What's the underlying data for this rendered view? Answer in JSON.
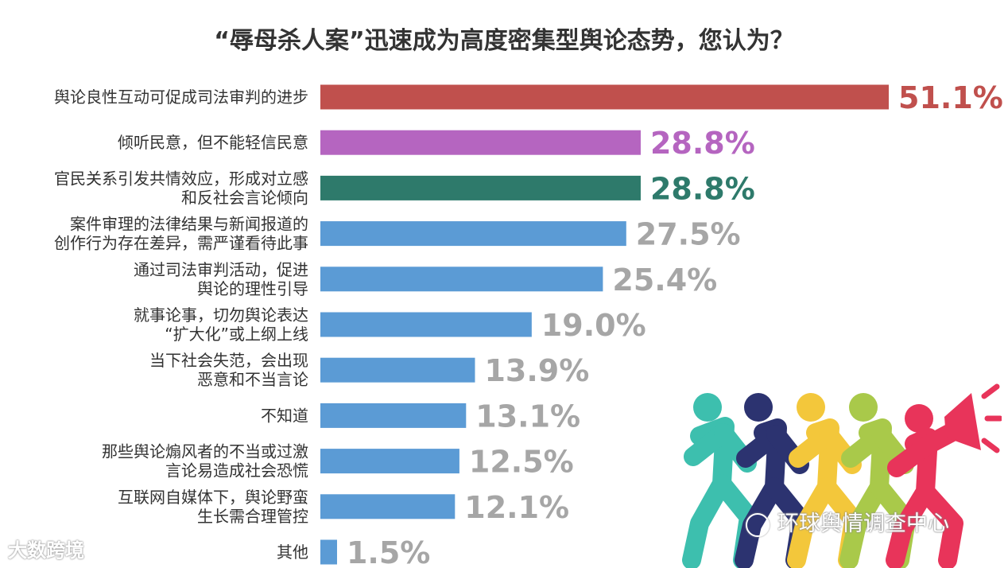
{
  "title": "“辱母杀人案”迅速成为高度密集型舆论态势，您认为？",
  "chart_data": {
    "type": "bar",
    "orientation": "horizontal",
    "title": "“辱母杀人案”迅速成为高度密集型舆论态势，您认为？",
    "unit": "%",
    "xlim": [
      0,
      51.1
    ],
    "grid": false,
    "categories": [
      [
        "舆论良性互动可促成司法审判的进步"
      ],
      [
        "倾听民意，但不能轻信民意"
      ],
      [
        "官民关系引发共情效应，形成对立感",
        "和反社会言论倾向"
      ],
      [
        "案件审理的法律结果与新闻报道的",
        "创作行为存在差异，需严谨看待此事"
      ],
      [
        "通过司法审判活动，促进",
        "舆论的理性引导"
      ],
      [
        "就事论事，切勿舆论表达",
        "“扩大化”或上纲上线"
      ],
      [
        "当下社会失范，会出现",
        "恶意和不当言论"
      ],
      [
        "不知道"
      ],
      [
        "那些舆论煽风者的不当或过激",
        "言论易造成社会恐慌"
      ],
      [
        "互联网自媒体下，舆论野蛮",
        "生长需合理管控"
      ],
      [
        "其他"
      ]
    ],
    "values": [
      51.1,
      28.8,
      28.8,
      27.5,
      25.4,
      19.0,
      13.9,
      13.1,
      12.5,
      12.1,
      1.5
    ],
    "value_labels": [
      "51.1%",
      "28.8%",
      "28.8%",
      "27.5%",
      "25.4%",
      "19.0%",
      "13.9%",
      "13.1%",
      "12.5%",
      "12.1%",
      "1.5%"
    ],
    "bar_colors": [
      "#c0504d",
      "#b565c0",
      "#2e7a6b",
      "#5b9bd5",
      "#5b9bd5",
      "#5b9bd5",
      "#5b9bd5",
      "#5b9bd5",
      "#5b9bd5",
      "#5b9bd5",
      "#5b9bd5"
    ],
    "label_colors": [
      "#c0504d",
      "#b565c0",
      "#2e7a6b",
      "#a6a6a6",
      "#a6a6a6",
      "#a6a6a6",
      "#a6a6a6",
      "#a6a6a6",
      "#a6a6a6",
      "#a6a6a6",
      "#a6a6a6"
    ]
  },
  "decoration": {
    "icon": "running-people-megaphone-icon",
    "colors": [
      "#3dbfae",
      "#2c3370",
      "#f3c73b",
      "#a9c94a",
      "#e8345a"
    ]
  },
  "watermarks": {
    "left": "大数跨境",
    "right": "环球舆情调查中心"
  }
}
